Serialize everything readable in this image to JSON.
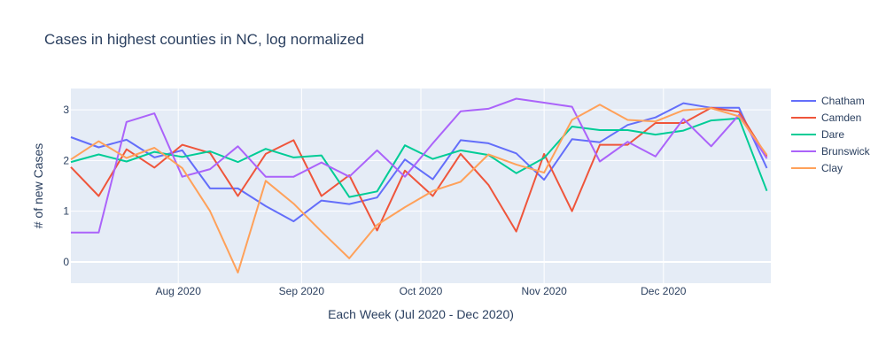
{
  "chart_data": {
    "type": "line",
    "title": "Cases in highest counties in NC, log normalized",
    "xlabel": "Each Week (Jul 2020 - Dec 2020)",
    "ylabel": "# of new Cases",
    "x": [
      "2020-07-05",
      "2020-07-12",
      "2020-07-19",
      "2020-07-26",
      "2020-08-02",
      "2020-08-09",
      "2020-08-16",
      "2020-08-23",
      "2020-08-30",
      "2020-09-06",
      "2020-09-13",
      "2020-09-20",
      "2020-09-27",
      "2020-10-04",
      "2020-10-11",
      "2020-10-18",
      "2020-10-25",
      "2020-11-01",
      "2020-11-08",
      "2020-11-15",
      "2020-11-22",
      "2020-11-29",
      "2020-12-06",
      "2020-12-13",
      "2020-12-20",
      "2020-12-27"
    ],
    "xlim": [
      "2020-07-05",
      "2020-12-28"
    ],
    "ylim": [
      -0.42,
      3.42
    ],
    "x_ticks": [
      {
        "value": "2020-08-01",
        "label": "Aug 2020"
      },
      {
        "value": "2020-09-01",
        "label": "Sep 2020"
      },
      {
        "value": "2020-10-01",
        "label": "Oct 2020"
      },
      {
        "value": "2020-11-01",
        "label": "Nov 2020"
      },
      {
        "value": "2020-12-01",
        "label": "Dec 2020"
      }
    ],
    "y_ticks": [
      0,
      1,
      2,
      3
    ],
    "grid": true,
    "legend_position": "top-right",
    "series": [
      {
        "name": "Chatham",
        "color": "#636efa",
        "values": [
          2.46,
          2.26,
          2.41,
          2.06,
          2.2,
          1.45,
          1.45,
          1.1,
          0.8,
          1.21,
          1.14,
          1.27,
          2.02,
          1.63,
          2.4,
          2.34,
          2.14,
          1.62,
          2.42,
          2.36,
          2.7,
          2.85,
          3.13,
          3.04,
          3.04,
          1.85
        ]
      },
      {
        "name": "Camden",
        "color": "#ef553b",
        "values": [
          1.87,
          1.3,
          2.22,
          1.86,
          2.31,
          2.15,
          1.3,
          2.13,
          2.4,
          1.3,
          1.71,
          0.62,
          1.8,
          1.3,
          2.13,
          1.52,
          0.6,
          2.13,
          1.0,
          2.31,
          2.31,
          2.74,
          2.74,
          3.04,
          2.96,
          2.08
        ]
      },
      {
        "name": "Dare",
        "color": "#00cc96",
        "values": [
          1.97,
          2.12,
          1.98,
          2.17,
          2.07,
          2.18,
          1.97,
          2.23,
          2.06,
          2.1,
          1.28,
          1.39,
          2.3,
          2.03,
          2.2,
          2.11,
          1.75,
          2.05,
          2.67,
          2.6,
          2.6,
          2.51,
          2.59,
          2.79,
          2.83,
          1.4
        ]
      },
      {
        "name": "Brunswick",
        "color": "#ab63fa",
        "values": [
          0.58,
          0.58,
          2.76,
          2.93,
          1.68,
          1.83,
          2.28,
          1.68,
          1.68,
          1.96,
          1.68,
          2.2,
          1.68,
          2.34,
          2.97,
          3.02,
          3.22,
          3.14,
          3.06,
          1.98,
          2.37,
          2.08,
          2.82,
          2.28,
          2.9,
          2.04
        ]
      },
      {
        "name": "Clay",
        "color": "#ffa15a",
        "values": [
          2.02,
          2.38,
          2.05,
          2.25,
          1.85,
          1.0,
          -0.21,
          1.6,
          1.15,
          0.6,
          0.07,
          0.73,
          1.08,
          1.4,
          1.58,
          2.12,
          1.92,
          1.76,
          2.8,
          3.1,
          2.8,
          2.77,
          2.99,
          3.03,
          2.87,
          2.11
        ]
      }
    ]
  }
}
